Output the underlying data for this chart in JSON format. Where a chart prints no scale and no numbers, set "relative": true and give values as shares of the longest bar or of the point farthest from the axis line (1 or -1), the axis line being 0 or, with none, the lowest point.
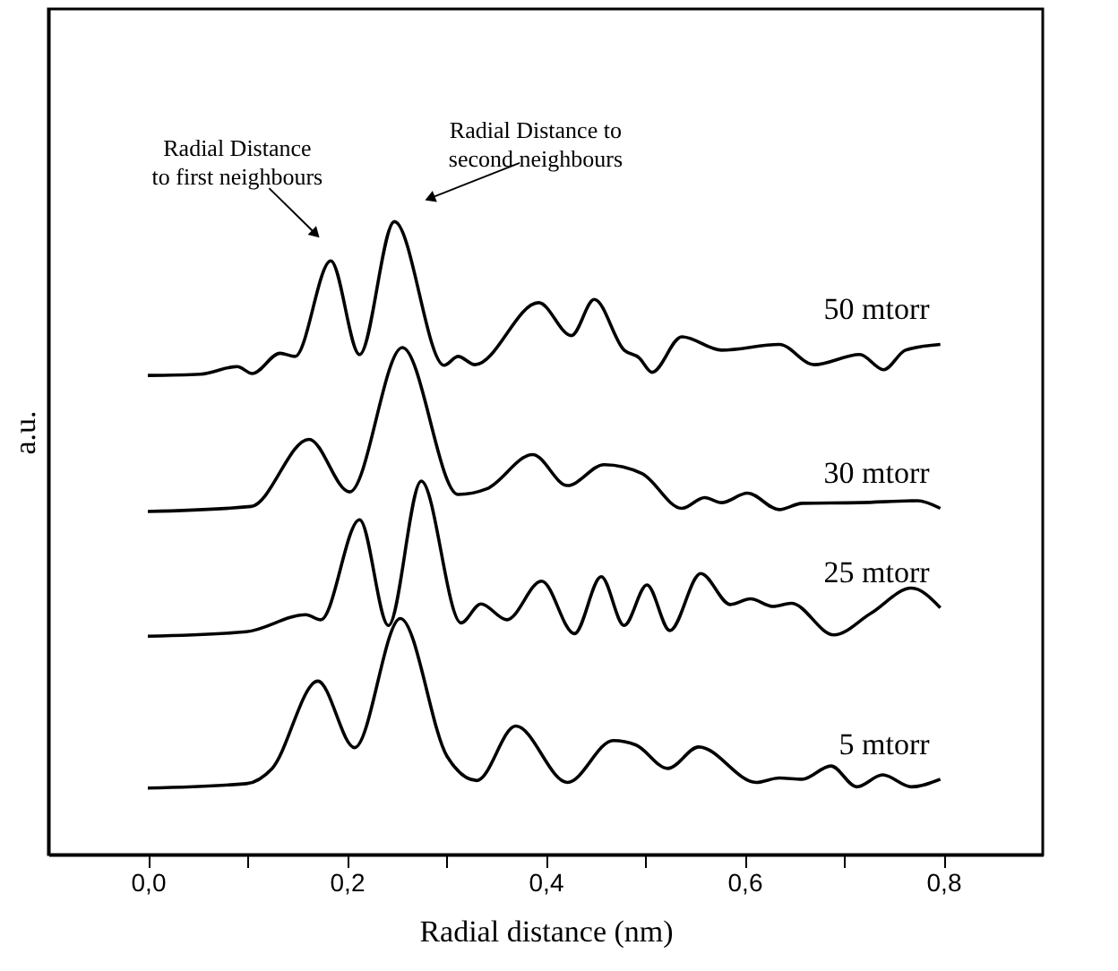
{
  "chart_data": {
    "type": "line",
    "relative": true,
    "xlabel": "Radial distance (nm)",
    "ylabel": "a.u.",
    "xlim": [
      -0.1,
      0.9
    ],
    "xticks": [
      {
        "value": 0,
        "label": "0,0"
      },
      {
        "value": 0.1,
        "label": null
      },
      {
        "value": 0.2,
        "label": "0,2"
      },
      {
        "value": 0.3,
        "label": null
      },
      {
        "value": 0.4,
        "label": "0,4"
      },
      {
        "value": 0.5,
        "label": null
      },
      {
        "value": 0.6,
        "label": "0,6"
      },
      {
        "value": 0.7,
        "label": null
      },
      {
        "value": 0.8,
        "label": "0,8"
      }
    ],
    "grid": false,
    "marker": "none",
    "line_style": "solid",
    "annotations": [
      "Radial Distance\nto first neighbours",
      "Radial Distance to\nsecond neighbours"
    ],
    "series": [
      {
        "name": "50 mtorr",
        "color": "#000000",
        "x": [
          0.0,
          0.053,
          0.09,
          0.105,
          0.133,
          0.148,
          0.184,
          0.213,
          0.248,
          0.298,
          0.312,
          0.329,
          0.393,
          0.426,
          0.449,
          0.479,
          0.494,
          0.507,
          0.537,
          0.577,
          0.635,
          0.67,
          0.716,
          0.74,
          0.762,
          0.797
        ],
        "values": [
          0.757,
          0.759,
          0.771,
          0.76,
          0.792,
          0.787,
          0.938,
          0.79,
          1.0,
          0.773,
          0.787,
          0.774,
          0.872,
          0.82,
          0.877,
          0.797,
          0.785,
          0.762,
          0.818,
          0.797,
          0.806,
          0.774,
          0.79,
          0.766,
          0.797,
          0.806
        ]
      },
      {
        "name": "30 mtorr",
        "color": "#000000",
        "x": [
          0.0,
          0.104,
          0.162,
          0.203,
          0.256,
          0.312,
          0.341,
          0.387,
          0.422,
          0.459,
          0.497,
          0.537,
          0.56,
          0.577,
          0.603,
          0.635,
          0.658,
          0.716,
          0.774,
          0.797
        ],
        "values": [
          0.542,
          0.55,
          0.656,
          0.573,
          0.801,
          0.569,
          0.578,
          0.632,
          0.583,
          0.616,
          0.602,
          0.547,
          0.564,
          0.556,
          0.571,
          0.545,
          0.555,
          0.556,
          0.559,
          0.547
        ]
      },
      {
        "name": "25 mtorr",
        "color": "#000000",
        "x": [
          0.0,
          0.099,
          0.159,
          0.174,
          0.213,
          0.242,
          0.275,
          0.315,
          0.335,
          0.361,
          0.396,
          0.429,
          0.456,
          0.479,
          0.502,
          0.525,
          0.556,
          0.586,
          0.606,
          0.629,
          0.647,
          0.69,
          0.727,
          0.768,
          0.797
        ],
        "values": [
          0.345,
          0.352,
          0.379,
          0.371,
          0.529,
          0.362,
          0.59,
          0.366,
          0.396,
          0.371,
          0.432,
          0.349,
          0.439,
          0.362,
          0.426,
          0.354,
          0.444,
          0.395,
          0.404,
          0.392,
          0.397,
          0.347,
          0.381,
          0.421,
          0.39
        ]
      },
      {
        "name": "5 mtorr",
        "color": "#000000",
        "x": [
          0.0,
          0.099,
          0.125,
          0.171,
          0.208,
          0.254,
          0.301,
          0.331,
          0.37,
          0.422,
          0.468,
          0.491,
          0.523,
          0.554,
          0.612,
          0.635,
          0.658,
          0.687,
          0.713,
          0.739,
          0.768,
          0.797
        ],
        "values": [
          0.105,
          0.112,
          0.136,
          0.274,
          0.169,
          0.373,
          0.155,
          0.117,
          0.203,
          0.114,
          0.18,
          0.173,
          0.136,
          0.17,
          0.114,
          0.121,
          0.119,
          0.14,
          0.107,
          0.126,
          0.107,
          0.119
        ]
      }
    ]
  }
}
